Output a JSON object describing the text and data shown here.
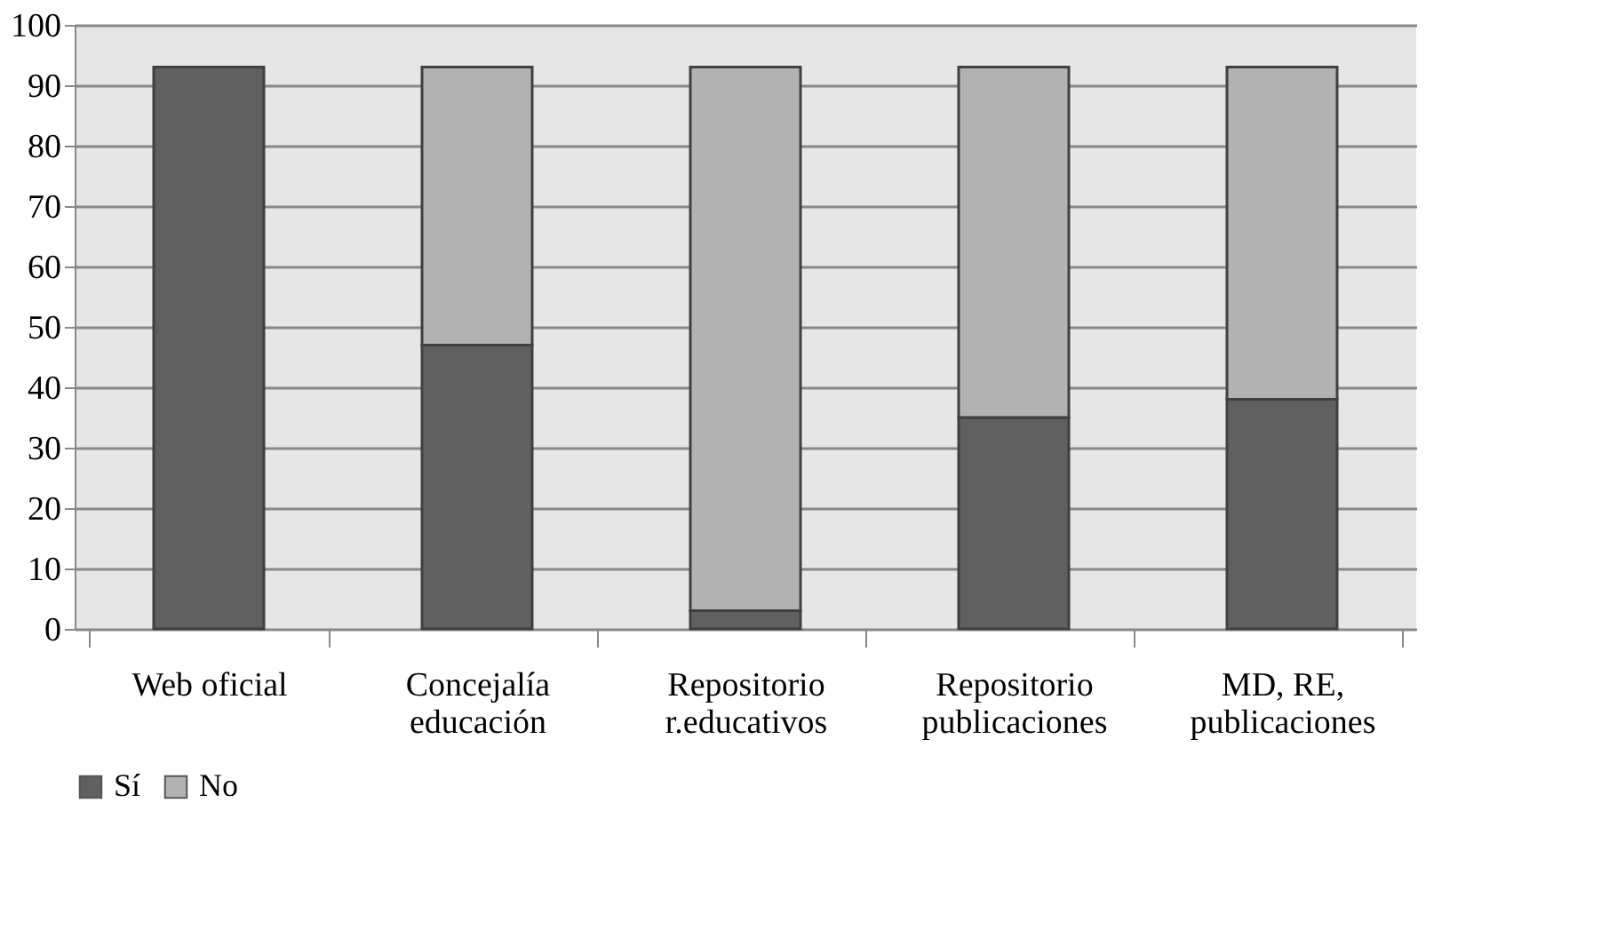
{
  "chart_data": {
    "type": "bar",
    "stacked": true,
    "categories": [
      "Web oficial",
      "Concejalía\neducación",
      "Repositorio\nr.educativos",
      "Repositorio\npublicaciones",
      "MD, RE,\npublicaciones"
    ],
    "series": [
      {
        "name": "Sí",
        "color": "#606060",
        "values": [
          93,
          47,
          3,
          35,
          38
        ]
      },
      {
        "name": "No",
        "color": "#b2b2b2",
        "values": [
          0,
          46,
          90,
          58,
          55
        ]
      }
    ],
    "ylim": [
      0,
      100
    ],
    "yticks": [
      0,
      10,
      20,
      30,
      40,
      50,
      60,
      70,
      80,
      90,
      100
    ],
    "grid": "y",
    "legend": "bottom"
  }
}
